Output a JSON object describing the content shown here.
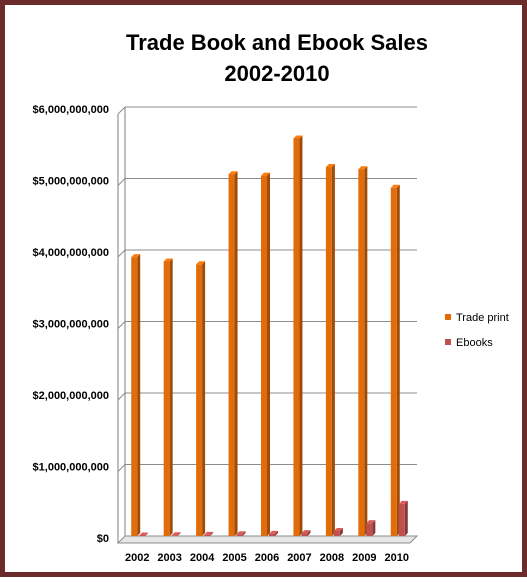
{
  "chart_data": {
    "type": "bar",
    "title_line1": "Trade Book and Ebook Sales",
    "title_line2": "2002-2010",
    "categories": [
      "2002",
      "2003",
      "2004",
      "2005",
      "2006",
      "2007",
      "2008",
      "2009",
      "2010"
    ],
    "series": [
      {
        "name": "Trade print",
        "color": "#e36c0a",
        "values": [
          3900000000,
          3840000000,
          3800000000,
          5060000000,
          5040000000,
          5560000000,
          5160000000,
          5130000000,
          4870000000
        ]
      },
      {
        "name": "Ebooks",
        "color": "#c0504d",
        "values": [
          7000000,
          10000000,
          15000000,
          25000000,
          30000000,
          40000000,
          70000000,
          180000000,
          450000000
        ]
      }
    ],
    "ylim": [
      0,
      6000000000
    ],
    "yticks": [
      "$0",
      "$1,000,000,000",
      "$2,000,000,000",
      "$3,000,000,000",
      "$4,000,000,000",
      "$5,000,000,000",
      "$6,000,000,000"
    ],
    "grid": true,
    "legend_position": "right",
    "frame_color": "#6b2b2b"
  }
}
